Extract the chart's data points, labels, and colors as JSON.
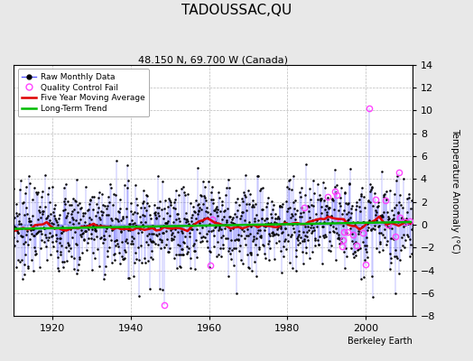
{
  "title": "TADOUSSAC,QU",
  "subtitle": "48.150 N, 69.700 W (Canada)",
  "ylabel": "Temperature Anomaly (°C)",
  "xlabel_credit": "Berkeley Earth",
  "ylim": [
    -8,
    14
  ],
  "yticks": [
    -8,
    -6,
    -4,
    -2,
    0,
    2,
    4,
    6,
    8,
    10,
    12,
    14
  ],
  "xlim": [
    1910,
    2012
  ],
  "xticks": [
    1920,
    1940,
    1960,
    1980,
    2000
  ],
  "year_start": 1910,
  "year_end": 2011,
  "bg_color": "#e8e8e8",
  "plot_bg_color": "#ffffff",
  "raw_line_color": "#5555ff",
  "raw_marker_color": "#000000",
  "qc_fail_color": "#ff44ff",
  "moving_avg_color": "#dd0000",
  "trend_color": "#00bb00",
  "data_seed": 7,
  "qc_seed": 99
}
